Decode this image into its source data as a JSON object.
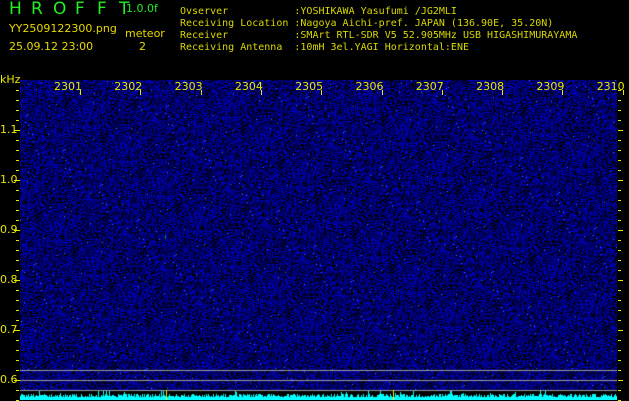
{
  "header": {
    "title_letters": [
      "H",
      "R",
      "O",
      "F",
      "F",
      "T"
    ],
    "version": "1.0.0f",
    "filename": "YY2509122300.png",
    "datetime": "25.09.12 23:00",
    "meteor_label": "meteor",
    "meteor_count": "2",
    "info": [
      "Ovserver           :YOSHIKAWA Yasufumi /JG2MLI",
      "Receiving Location :Nagoya Aichi-pref. JAPAN (136.90E, 35.20N)",
      "Receiver           :SMArt RTL-SDR V5 52.905MHz USB HIGASHIMURAYAMA",
      "Receiving Antenna  :10mH 3el.YAGI Horizontal:ENE"
    ]
  },
  "axes": {
    "y_unit": "kHz",
    "y_ticks": [
      "1.1",
      "1.0",
      "0.9",
      "0.8",
      "0.7",
      "0.6"
    ],
    "x_ticks": [
      "2301",
      "2302",
      "2303",
      "2304",
      "2305",
      "2306",
      "2307",
      "2308",
      "2309",
      "2310"
    ]
  },
  "colors": {
    "accent_yellow": "#e8e800",
    "title_green": "#22ee22",
    "spectrum": "#00ffff",
    "waterfall": "#1020c0"
  }
}
